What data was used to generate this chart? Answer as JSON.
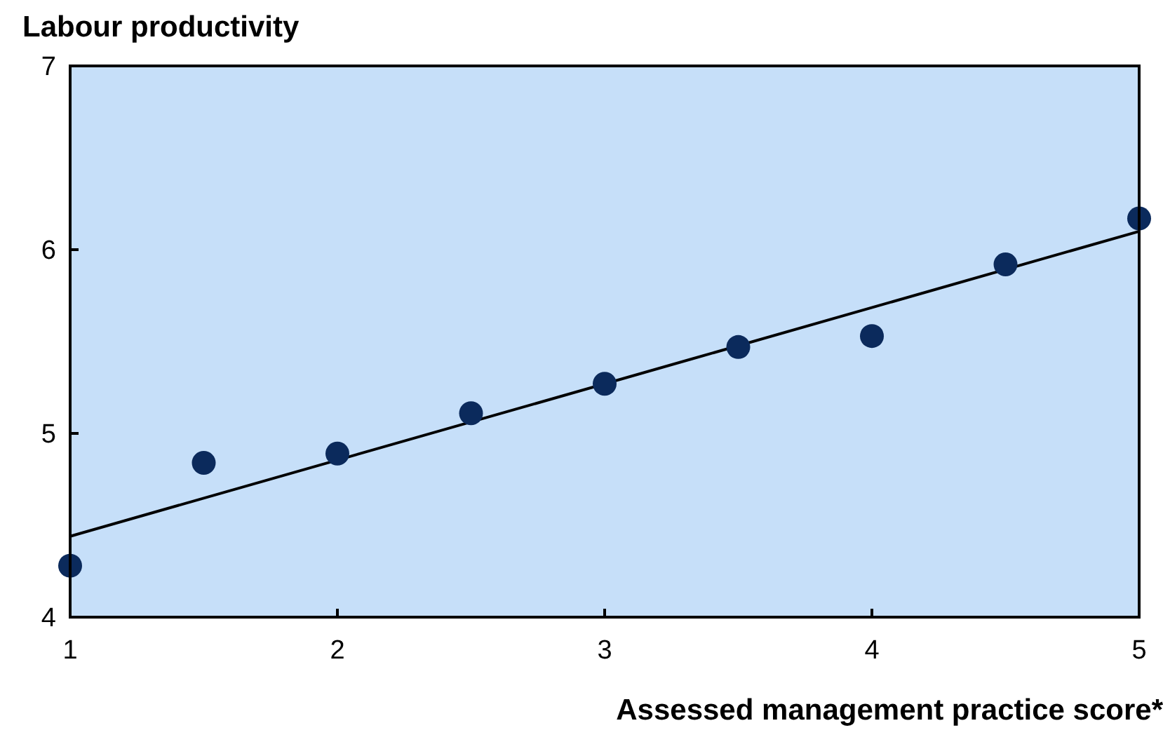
{
  "chart_data": {
    "type": "scatter",
    "ylabel": "Labour productivity",
    "xlabel": "Assessed management practice score*",
    "x": [
      1,
      1.5,
      2,
      2.5,
      3,
      3.5,
      4,
      4.5,
      5
    ],
    "series": [
      {
        "color": "#0b2a5c",
        "marker": "circle",
        "values": [
          4.28,
          4.84,
          4.89,
          5.11,
          5.27,
          5.47,
          5.53,
          5.92,
          6.17
        ]
      },
      {
        "type": "line",
        "color": "#000000",
        "marker": "none",
        "x": [
          1,
          5
        ],
        "values": [
          4.44,
          6.1
        ]
      }
    ],
    "xlim": [
      1,
      5
    ],
    "ylim": [
      4,
      7
    ],
    "xticks": [
      1,
      2,
      3,
      4,
      5
    ],
    "yticks": [
      4,
      5,
      6,
      7
    ],
    "grid": false
  }
}
